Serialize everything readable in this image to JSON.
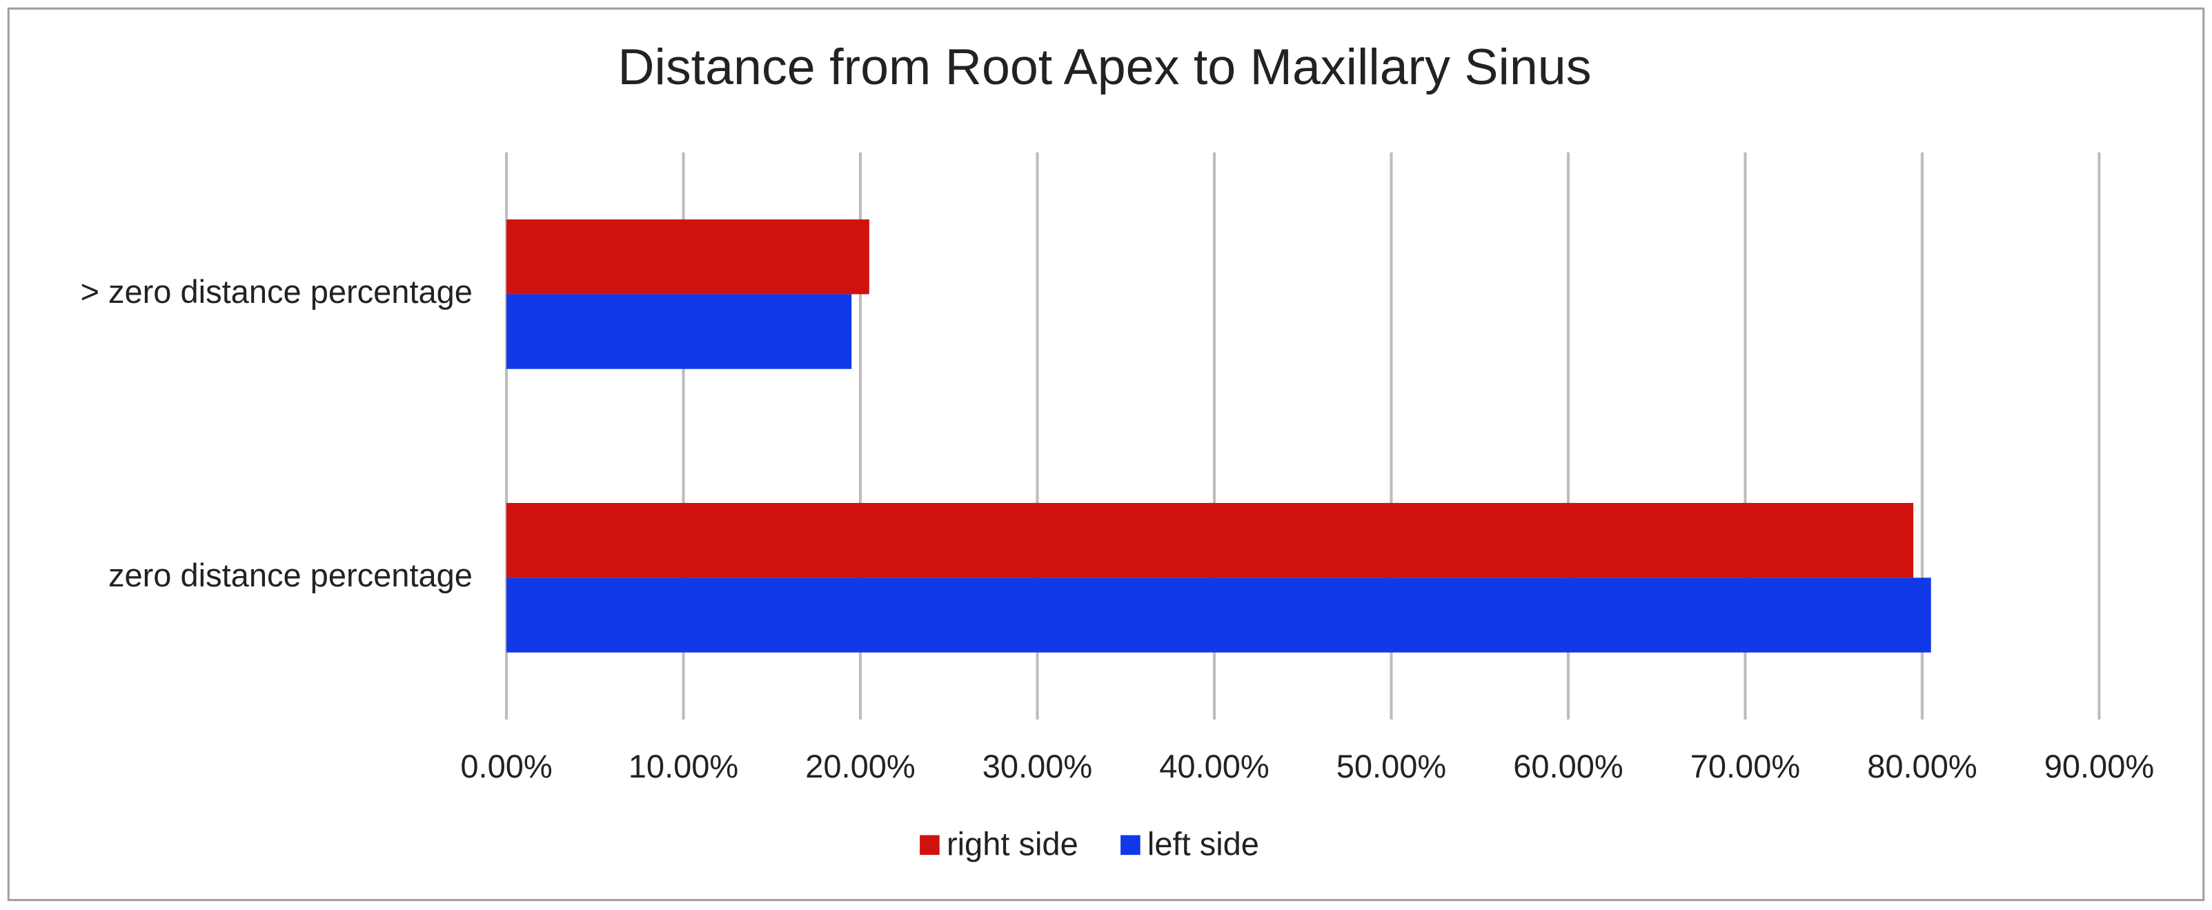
{
  "chart_data": {
    "type": "bar",
    "orientation": "horizontal",
    "title": "Distance from Root Apex to Maxillary Sinus",
    "categories": [
      "> zero distance percentage",
      "zero distance percentage"
    ],
    "series": [
      {
        "name": "right side",
        "color": "#d0120f",
        "values": [
          20.5,
          79.5
        ]
      },
      {
        "name": "left side",
        "color": "#1239e8",
        "values": [
          19.5,
          80.5
        ]
      }
    ],
    "xlim": [
      0,
      90
    ],
    "xticks": [
      {
        "value": 0,
        "label": "0.00%"
      },
      {
        "value": 10,
        "label": "10.00%"
      },
      {
        "value": 20,
        "label": "20.00%"
      },
      {
        "value": 30,
        "label": "30.00%"
      },
      {
        "value": 40,
        "label": "40.00%"
      },
      {
        "value": 50,
        "label": "50.00%"
      },
      {
        "value": 60,
        "label": "60.00%"
      },
      {
        "value": 70,
        "label": "70.00%"
      },
      {
        "value": 80,
        "label": "80.00%"
      },
      {
        "value": 90,
        "label": "90.00%"
      }
    ],
    "grid": true,
    "legend": "bottom"
  }
}
